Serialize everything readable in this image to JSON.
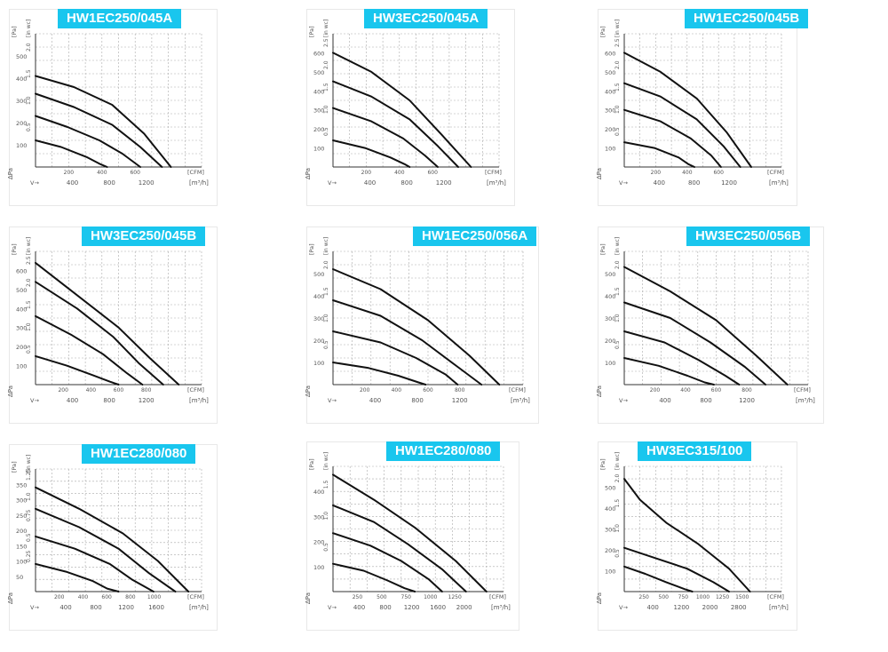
{
  "page": {
    "background": "#ffffff",
    "title_color": "#19c6ee"
  },
  "chart_data": [
    {
      "type": "line",
      "title": "HW1EC250/045A",
      "ylabel": "[Pa]",
      "ylabel2": "[in wc]",
      "xlabel": "[m³/h]",
      "xlabel2": "[CFM]",
      "x_unit": "m3h",
      "xlim": [
        0,
        1300
      ],
      "ylim": [
        0,
        600
      ],
      "xticks_m3h": [
        "400",
        "800",
        "1200"
      ],
      "xticks_cfm": [
        "200",
        "400",
        "600"
      ],
      "yticks": [
        "100",
        "200",
        "300",
        "400",
        "500"
      ],
      "yticks2": [
        "0.5",
        "1.0",
        "1.5",
        "2.0"
      ],
      "series": [
        {
          "x": [
            0,
            300,
            600,
            850,
            1060
          ],
          "y": [
            410,
            360,
            280,
            150,
            0
          ]
        },
        {
          "x": [
            0,
            300,
            600,
            820,
            990
          ],
          "y": [
            330,
            270,
            190,
            90,
            0
          ]
        },
        {
          "x": [
            0,
            250,
            500,
            680,
            820
          ],
          "y": [
            230,
            180,
            120,
            60,
            0
          ]
        },
        {
          "x": [
            0,
            200,
            400,
            500,
            560
          ],
          "y": [
            120,
            90,
            45,
            15,
            0
          ]
        }
      ]
    },
    {
      "type": "line",
      "title": "HW3EC250/045A",
      "ylabel": "[Pa]",
      "ylabel2": "[in wc]",
      "xlabel": "[m³/h]",
      "xlabel2": "[CFM]",
      "x_unit": "m3h",
      "xlim": [
        0,
        1300
      ],
      "ylim": [
        0,
        700
      ],
      "xticks_m3h": [
        "400",
        "800",
        "1200"
      ],
      "xticks_cfm": [
        "200",
        "400",
        "600"
      ],
      "yticks": [
        "100",
        "200",
        "300",
        "400",
        "500",
        "600"
      ],
      "yticks2": [
        "0.5",
        "1.0",
        "1.5",
        "2.0",
        "2.5"
      ],
      "series": [
        {
          "x": [
            0,
            300,
            600,
            850,
            1080
          ],
          "y": [
            600,
            500,
            350,
            170,
            0
          ]
        },
        {
          "x": [
            0,
            300,
            600,
            820,
            980
          ],
          "y": [
            450,
            370,
            250,
            110,
            0
          ]
        },
        {
          "x": [
            0,
            300,
            550,
            720,
            820
          ],
          "y": [
            310,
            240,
            150,
            60,
            0
          ]
        },
        {
          "x": [
            0,
            250,
            450,
            560,
            600
          ],
          "y": [
            140,
            100,
            50,
            15,
            0
          ]
        }
      ]
    },
    {
      "type": "line",
      "title": "HW1EC250/045B",
      "ylabel": "[Pa]",
      "ylabel2": "[in wc]",
      "xlabel": "[m³/h]",
      "xlabel2": "[CFM]",
      "x_unit": "m3h",
      "xlim": [
        0,
        1300
      ],
      "ylim": [
        0,
        700
      ],
      "xticks_m3h": [
        "400",
        "800",
        "1200"
      ],
      "xticks_cfm": [
        "200",
        "400",
        "600"
      ],
      "yticks": [
        "100",
        "200",
        "300",
        "400",
        "500",
        "600"
      ],
      "yticks2": [
        "0.5",
        "1.0",
        "1.5",
        "2.0",
        "2.5"
      ],
      "series": [
        {
          "x": [
            0,
            300,
            600,
            850,
            1050
          ],
          "y": [
            600,
            500,
            360,
            180,
            0
          ]
        },
        {
          "x": [
            0,
            300,
            600,
            820,
            960
          ],
          "y": [
            440,
            370,
            250,
            110,
            0
          ]
        },
        {
          "x": [
            0,
            300,
            550,
            720,
            800
          ],
          "y": [
            300,
            240,
            150,
            60,
            0
          ]
        },
        {
          "x": [
            0,
            250,
            450,
            530,
            580
          ],
          "y": [
            130,
            100,
            50,
            15,
            0
          ]
        }
      ]
    },
    {
      "type": "line",
      "title": "HW3EC250/045B",
      "ylabel": "[Pa]",
      "ylabel2": "[in wc]",
      "xlabel": "[m³/h]",
      "xlabel2": "[CFM]",
      "x_unit": "m3h",
      "xlim": [
        0,
        1600
      ],
      "ylim": [
        0,
        700
      ],
      "xticks_m3h": [
        "400",
        "800",
        "1200"
      ],
      "xticks_cfm": [
        "200",
        "400",
        "600",
        "800"
      ],
      "yticks": [
        "100",
        "200",
        "300",
        "400",
        "500",
        "600"
      ],
      "yticks2": [
        "0.5",
        "1.0",
        "1.5",
        "2.0",
        "2.5"
      ],
      "series": [
        {
          "x": [
            0,
            400,
            800,
            1100,
            1380
          ],
          "y": [
            640,
            470,
            300,
            140,
            0
          ]
        },
        {
          "x": [
            0,
            400,
            750,
            1000,
            1230
          ],
          "y": [
            540,
            400,
            250,
            110,
            0
          ]
        },
        {
          "x": [
            0,
            350,
            650,
            880,
            1030
          ],
          "y": [
            360,
            260,
            160,
            60,
            0
          ]
        },
        {
          "x": [
            0,
            300,
            550,
            720,
            800
          ],
          "y": [
            150,
            100,
            50,
            15,
            0
          ]
        }
      ]
    },
    {
      "type": "line",
      "title": "HW1EC250/056A",
      "ylabel": "[Pa]",
      "ylabel2": "[in wc]",
      "xlabel": "[m³/h]",
      "xlabel2": "[CFM]",
      "x_unit": "m3h",
      "xlim": [
        0,
        1600
      ],
      "ylim": [
        0,
        600
      ],
      "xticks_m3h": [
        "400",
        "800",
        "1200"
      ],
      "xticks_cfm": [
        "200",
        "400",
        "600",
        "800"
      ],
      "yticks": [
        "100",
        "200",
        "300",
        "400",
        "500"
      ],
      "yticks2": [
        "0.5",
        "1.0",
        "1.5",
        "2.0"
      ],
      "series": [
        {
          "x": [
            0,
            400,
            800,
            1150,
            1400
          ],
          "y": [
            520,
            430,
            290,
            130,
            0
          ]
        },
        {
          "x": [
            0,
            400,
            750,
            1050,
            1250
          ],
          "y": [
            380,
            310,
            200,
            80,
            0
          ]
        },
        {
          "x": [
            0,
            400,
            700,
            950,
            1050
          ],
          "y": [
            240,
            190,
            120,
            45,
            0
          ]
        },
        {
          "x": [
            0,
            300,
            550,
            720,
            780
          ],
          "y": [
            100,
            75,
            40,
            10,
            0
          ]
        }
      ]
    },
    {
      "type": "line",
      "title": "HW3EC250/056B",
      "ylabel": "[Pa]",
      "ylabel2": "[in wc]",
      "xlabel": "[m³/h]",
      "xlabel2": "[CFM]",
      "x_unit": "m3h",
      "xlim": [
        0,
        1600
      ],
      "ylim": [
        0,
        600
      ],
      "xticks_m3h": [
        "400",
        "800",
        "1200"
      ],
      "xticks_cfm": [
        "200",
        "400",
        "600",
        "800"
      ],
      "yticks": [
        "100",
        "200",
        "300",
        "400",
        "500"
      ],
      "yticks2": [
        "0.5",
        "1.0",
        "1.5",
        "2.0"
      ],
      "series": [
        {
          "x": [
            0,
            400,
            800,
            1150,
            1420
          ],
          "y": [
            530,
            420,
            290,
            130,
            0
          ]
        },
        {
          "x": [
            0,
            400,
            750,
            1050,
            1230
          ],
          "y": [
            370,
            300,
            190,
            80,
            0
          ]
        },
        {
          "x": [
            0,
            350,
            650,
            880,
            1000
          ],
          "y": [
            240,
            190,
            110,
            40,
            0
          ]
        },
        {
          "x": [
            0,
            300,
            550,
            700,
            780
          ],
          "y": [
            120,
            85,
            40,
            10,
            0
          ]
        }
      ]
    },
    {
      "type": "line",
      "title": "HW1EC280/080",
      "ylabel": "[Pa]",
      "ylabel2": "[in wc]",
      "xlabel": "[m³/h]",
      "xlabel2": "[CFM]",
      "x_unit": "m3h",
      "xlim": [
        0,
        1900
      ],
      "ylim": [
        0,
        400
      ],
      "xticks_m3h": [
        "400",
        "800",
        "1200",
        "1600"
      ],
      "xticks_cfm": [
        "200",
        "400",
        "600",
        "800",
        "1000"
      ],
      "yticks": [
        "50",
        "100",
        "150",
        "200",
        "250",
        "300",
        "350"
      ],
      "yticks2": [
        "0.25",
        "0.5",
        "0.75",
        "1.0",
        "1.25"
      ],
      "series": [
        {
          "x": [
            0,
            500,
            1000,
            1400,
            1750
          ],
          "y": [
            340,
            270,
            190,
            100,
            0
          ]
        },
        {
          "x": [
            0,
            500,
            950,
            1300,
            1600
          ],
          "y": [
            270,
            210,
            140,
            60,
            0
          ]
        },
        {
          "x": [
            0,
            450,
            850,
            1100,
            1350
          ],
          "y": [
            180,
            140,
            90,
            40,
            0
          ]
        },
        {
          "x": [
            0,
            350,
            650,
            820,
            950
          ],
          "y": [
            90,
            65,
            35,
            10,
            0
          ]
        }
      ]
    },
    {
      "type": "line",
      "title": "HW1EC280/080",
      "ylabel": "[Pa]",
      "ylabel2": "[in wc]",
      "xlabel": "[m³/h]",
      "xlabel2": "[CFM]",
      "x_unit": "m3h",
      "xlim": [
        0,
        2500
      ],
      "ylim": [
        0,
        450
      ],
      "xticks_m3h": [
        "400",
        "800",
        "1200",
        "1600",
        "2000"
      ],
      "xticks_cfm": [
        "250",
        "500",
        "750",
        "1000",
        "1250"
      ],
      "yticks": [
        "100",
        "200",
        "300",
        "400"
      ],
      "yticks2": [
        "0.5",
        "1.0",
        "1.5"
      ],
      "series": [
        {
          "x": [
            0,
            600,
            1200,
            1800,
            2250
          ],
          "y": [
            420,
            330,
            230,
            110,
            0
          ]
        },
        {
          "x": [
            0,
            600,
            1100,
            1600,
            1950
          ],
          "y": [
            310,
            250,
            170,
            80,
            0
          ]
        },
        {
          "x": [
            0,
            550,
            1000,
            1400,
            1600
          ],
          "y": [
            210,
            165,
            110,
            45,
            0
          ]
        },
        {
          "x": [
            0,
            450,
            800,
            1050,
            1200
          ],
          "y": [
            100,
            75,
            40,
            12,
            0
          ]
        }
      ]
    },
    {
      "type": "line",
      "title": "HW3EC315/100",
      "ylabel": "[Pa]",
      "ylabel2": "[in wc]",
      "xlabel": "[m³/h]",
      "xlabel2": "[CFM]",
      "x_unit": "m3h",
      "xlim": [
        0,
        3000
      ],
      "ylim": [
        0,
        600
      ],
      "xticks_m3h": [
        "400",
        "1200",
        "2000",
        "2800"
      ],
      "xticks_cfm": [
        "250",
        "500",
        "750",
        "1000",
        "1250",
        "1500"
      ],
      "yticks": [
        "100",
        "200",
        "300",
        "400",
        "500"
      ],
      "yticks2": [
        "0.5",
        "1.0",
        "1.5",
        "2.0"
      ],
      "series": [
        {
          "x": [
            0,
            300,
            800,
            1400,
            2000,
            2400
          ],
          "y": [
            540,
            440,
            330,
            230,
            110,
            0
          ]
        },
        {
          "x": [
            0,
            600,
            1200,
            1700,
            2000
          ],
          "y": [
            210,
            160,
            110,
            45,
            0
          ]
        },
        {
          "x": [
            0,
            400,
            800,
            1150,
            1300
          ],
          "y": [
            120,
            85,
            45,
            12,
            0
          ]
        }
      ]
    }
  ]
}
